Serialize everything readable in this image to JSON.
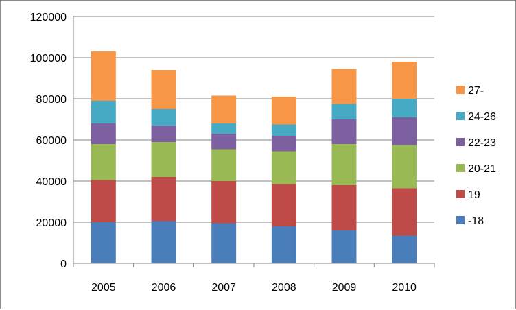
{
  "chart_data": {
    "type": "bar",
    "stacked": true,
    "categories": [
      "2005",
      "2006",
      "2007",
      "2008",
      "2009",
      "2010"
    ],
    "ylim": [
      0,
      120000
    ],
    "y_ticks": [
      "0",
      "20000",
      "40000",
      "60000",
      "80000",
      "100000",
      "120000"
    ],
    "grid": true,
    "legend_position": "right",
    "series": [
      {
        "name": "-18",
        "color": "#4a7ebb",
        "values": [
          20000,
          20500,
          19500,
          18000,
          16000,
          13500
        ]
      },
      {
        "name": "19",
        "color": "#be4b48",
        "values": [
          20500,
          21500,
          20500,
          20500,
          22000,
          23000
        ]
      },
      {
        "name": "20-21",
        "color": "#98b954",
        "values": [
          17500,
          17000,
          15500,
          16000,
          20000,
          21000
        ]
      },
      {
        "name": "22-23",
        "color": "#7d60a0",
        "values": [
          10000,
          8000,
          7500,
          7500,
          12000,
          13500
        ]
      },
      {
        "name": "24-26",
        "color": "#46aac5",
        "values": [
          11000,
          8000,
          5000,
          5500,
          7500,
          9000
        ]
      },
      {
        "name": "27-",
        "color": "#f79646",
        "values": [
          24000,
          19000,
          13500,
          13500,
          17000,
          18000
        ]
      }
    ]
  }
}
